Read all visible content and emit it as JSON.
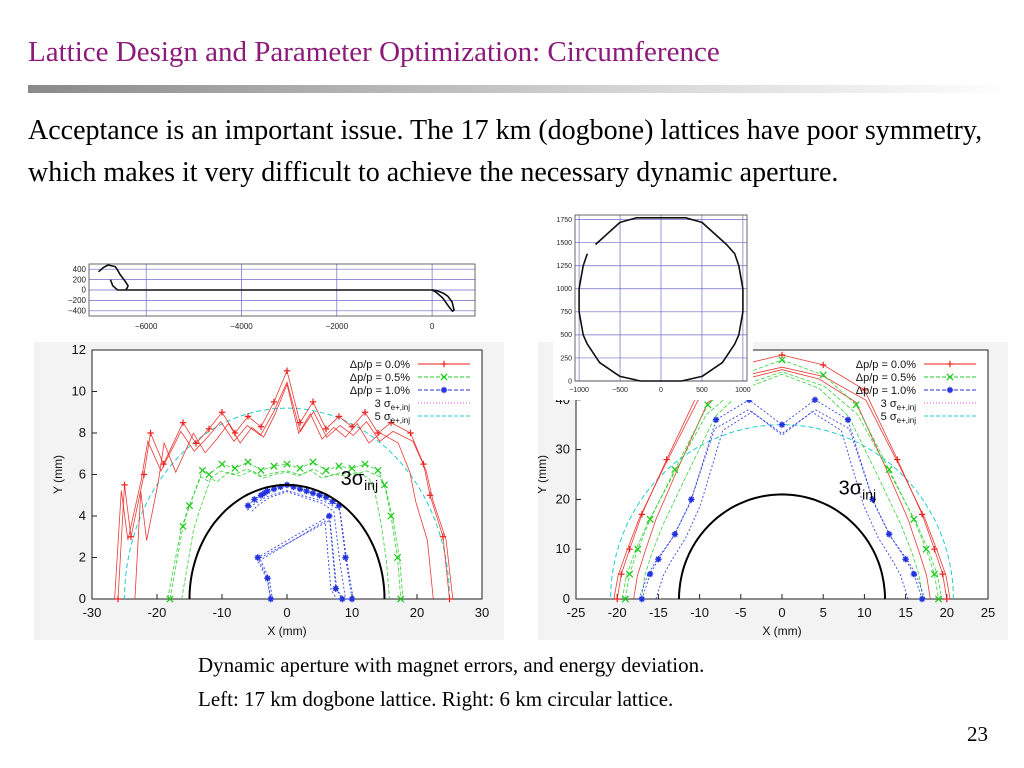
{
  "slide": {
    "title": "Lattice Design and Parameter Optimization: Circumference",
    "body": "Acceptance is an important issue.  The 17 km (dogbone) lattices have poor symmetry, which makes it very difficult to achieve the necessary dynamic aperture.",
    "caption_line1": "Dynamic aperture with magnet errors, and energy deviation.",
    "caption_line2": "Left: 17 km dogbone lattice.  Right: 6 km circular lattice.",
    "page_number": "23"
  },
  "colors": {
    "title": "#8b1a7a",
    "dp0": "#e8231f",
    "dp05": "#22cc22",
    "dp10": "#2233dd",
    "sigma3": "#ee44ee",
    "sigma5": "#22cccc"
  },
  "chart_data": [
    {
      "type": "line",
      "title": "",
      "x": [
        -7000,
        -6900,
        -6800,
        -6650,
        -6600,
        -6550,
        -6450,
        -6380,
        -6400,
        -6430,
        -6300,
        -6200,
        -5000,
        -3000,
        -1000,
        0,
        80,
        220,
        350,
        430,
        460,
        420,
        330,
        230,
        120,
        20,
        -100,
        -1000,
        -3000,
        -5000,
        -6600,
        -6700,
        -6750
      ],
      "y": [
        350,
        430,
        480,
        450,
        380,
        300,
        180,
        80,
        40,
        0,
        0,
        0,
        0,
        0,
        0,
        0,
        -40,
        -150,
        -320,
        -410,
        -380,
        -230,
        -120,
        -60,
        -20,
        0,
        0,
        0,
        0,
        0,
        0,
        80,
        200
      ],
      "xticks": [
        "−6000",
        "−4000",
        "−2000",
        "0"
      ],
      "yticks": [
        "400",
        "200",
        "0",
        "−200",
        "−400"
      ],
      "xlim": [
        -7200,
        900
      ],
      "ylim": [
        -500,
        500
      ],
      "grid": true
    },
    {
      "type": "line",
      "title": "",
      "x": [
        -800,
        -500,
        -300,
        0,
        300,
        500,
        800,
        900,
        950,
        1000,
        1000,
        950,
        900,
        750,
        500,
        250,
        0,
        -250,
        -500,
        -750,
        -900,
        -950,
        -1000,
        -1000,
        -950,
        -900
      ],
      "y": [
        1480,
        1720,
        1770,
        1770,
        1770,
        1720,
        1480,
        1380,
        1250,
        1000,
        750,
        500,
        400,
        200,
        50,
        0,
        0,
        0,
        50,
        200,
        400,
        500,
        750,
        1000,
        1250,
        1380
      ],
      "xticks": [
        "−1000",
        "−500",
        "0",
        "500",
        "1000"
      ],
      "yticks": [
        "0",
        "250",
        "500",
        "750",
        "1000",
        "1250",
        "1500",
        "1750"
      ],
      "xlim": [
        -1050,
        1050
      ],
      "ylim": [
        0,
        1800
      ],
      "grid": true
    },
    {
      "type": "scatter",
      "title": "",
      "xlabel": "X (mm)",
      "ylabel": "Y (mm)",
      "xlim": [
        -30,
        30
      ],
      "ylim": [
        0,
        12
      ],
      "xticks": [
        "-30",
        "-20",
        "-10",
        "0",
        "10",
        "20",
        "30"
      ],
      "yticks": [
        "0",
        "2",
        "4",
        "6",
        "8",
        "10",
        "12"
      ],
      "annotation": "3σ",
      "annotation_sub": "inj",
      "legend": "top-right",
      "legend_entries": [
        {
          "text": "Δp/p = 0.0%",
          "series": "dp0"
        },
        {
          "text": "Δp/p = 0.5%",
          "series": "dp05"
        },
        {
          "text": "Δp/p = 1.0%",
          "series": "dp10"
        },
        {
          "text": "3 σ",
          "sub": "e+,inj",
          "series": "sigma3"
        },
        {
          "text": "5 σ",
          "sub": "e+,inj",
          "series": "sigma5"
        }
      ],
      "series": [
        {
          "key": "dp0",
          "marker": "+",
          "x": [
            -26,
            -25,
            -24,
            -22,
            -21,
            -19,
            -16,
            -14,
            -12,
            -10,
            -8,
            -6,
            -4,
            -2,
            0,
            2,
            4,
            6,
            8,
            10,
            12,
            14,
            16,
            19,
            21,
            22,
            24,
            25
          ],
          "y": [
            0,
            5.5,
            3,
            6,
            8,
            6.5,
            8.5,
            7.5,
            8.2,
            9,
            8,
            8.8,
            8.3,
            9.5,
            11,
            8.5,
            9.5,
            8.2,
            8.8,
            8.3,
            9,
            8,
            8.5,
            8,
            6.5,
            5,
            3,
            0
          ]
        },
        {
          "key": "dp05",
          "marker": "x",
          "x": [
            -18,
            -16,
            -15,
            -13,
            -12,
            -10,
            -8,
            -6,
            -4,
            -2,
            0,
            2,
            4,
            6,
            8,
            10,
            12,
            14,
            15,
            16,
            17,
            17.5
          ],
          "y": [
            0,
            3.5,
            4.5,
            6.2,
            6,
            6.5,
            6.3,
            6.6,
            6.2,
            6.4,
            6.5,
            6.3,
            6.6,
            6.2,
            6.4,
            6.3,
            6.5,
            6.2,
            5.5,
            4,
            2,
            0
          ]
        },
        {
          "key": "dp10",
          "marker": "*",
          "x": [
            -6,
            -5,
            -4,
            -3.5,
            -3,
            -2,
            -1,
            0,
            1,
            2,
            3,
            4,
            5,
            6,
            7,
            8,
            9,
            10,
            8.5,
            7.5,
            6.5,
            -4.5,
            -3,
            -2.5
          ],
          "y": [
            4.5,
            4.8,
            5,
            5.1,
            5.2,
            5.3,
            5.4,
            5.5,
            5.4,
            5.3,
            5.2,
            5.1,
            5,
            4.9,
            4.7,
            4.5,
            2,
            0,
            0,
            0.5,
            4,
            2,
            1,
            0
          ]
        }
      ],
      "ellipse_3sigma": {
        "a": 15,
        "b": 5.5
      },
      "ellipse_5sigma": {
        "a": 25,
        "b": 9.2
      }
    },
    {
      "type": "scatter",
      "title": "",
      "xlabel": "X (mm)",
      "ylabel": "Y (mm)",
      "xlim": [
        -25,
        25
      ],
      "ylim": [
        0,
        50
      ],
      "xticks": [
        "-25",
        "-20",
        "-15",
        "-10",
        "-5",
        "0",
        "5",
        "10",
        "15",
        "20",
        "25"
      ],
      "yticks": [
        "0",
        "10",
        "20",
        "30",
        "40"
      ],
      "annotation": "3σ",
      "annotation_sub": "inj",
      "legend": "top-right",
      "legend_entries": [
        {
          "text": "Δp/p = 0.0%",
          "series": "dp0"
        },
        {
          "text": "Δp/p = 0.5%",
          "series": "dp05"
        },
        {
          "text": "Δp/p = 1.0%",
          "series": "dp10"
        },
        {
          "text": "3 σ",
          "sub": "e+,inj",
          "series": "sigma3"
        },
        {
          "text": "5 σ",
          "sub": "e+,inj",
          "series": "sigma5"
        }
      ],
      "series": [
        {
          "key": "dp0",
          "marker": "+",
          "x": [
            -20,
            -19.5,
            -18.5,
            -17,
            -14,
            -10,
            -5,
            0,
            5,
            10,
            14,
            17,
            18.5,
            19.5,
            20
          ],
          "y": [
            0,
            5,
            10,
            17,
            28,
            42,
            47,
            49,
            47,
            42,
            28,
            17,
            10,
            5,
            0
          ]
        },
        {
          "key": "dp05",
          "marker": "x",
          "x": [
            -19,
            -18.5,
            -17.5,
            -16,
            -13,
            -9,
            -5,
            0,
            5,
            9,
            13,
            16,
            17.5,
            18.5,
            19
          ],
          "y": [
            0,
            5,
            10,
            16,
            26,
            39,
            45,
            48,
            45,
            39,
            26,
            16,
            10,
            5,
            0
          ]
        },
        {
          "key": "dp10",
          "marker": "*",
          "x": [
            -17,
            -16,
            -15,
            -13,
            -11,
            -8,
            -4,
            0,
            4,
            8,
            11,
            13,
            15,
            16,
            17
          ],
          "y": [
            0,
            5,
            8,
            13,
            20,
            36,
            40,
            35,
            40,
            36,
            20,
            13,
            8,
            5,
            0
          ]
        }
      ],
      "ellipse_3sigma": {
        "a": 12.5,
        "b": 21
      },
      "ellipse_5sigma": {
        "a": 20.8,
        "b": 35
      }
    }
  ]
}
